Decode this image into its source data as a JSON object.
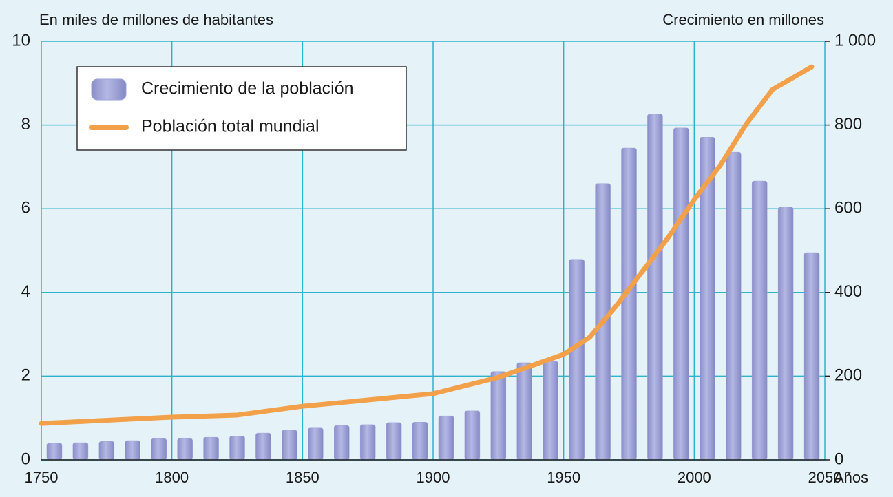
{
  "chart_data": {
    "type": "bar-line",
    "y_axis_label": "En miles de millones de habitantes",
    "y2_axis_label": "Crecimiento en millones",
    "x_axis_label": "Años",
    "series": [
      {
        "name": "Crecimiento de la población",
        "type": "bar",
        "axis": "y2",
        "color": "#9ea2d6",
        "x": [
          1755,
          1765,
          1775,
          1785,
          1795,
          1805,
          1815,
          1825,
          1835,
          1845,
          1855,
          1865,
          1875,
          1885,
          1895,
          1905,
          1915,
          1925,
          1935,
          1945,
          1955,
          1965,
          1975,
          1985,
          1995,
          2005,
          2015,
          2025,
          2035,
          2045
        ],
        "values": [
          40,
          41,
          44,
          46,
          51,
          51,
          54,
          57,
          64,
          71,
          76,
          82,
          84,
          89,
          90,
          105,
          117,
          211,
          232,
          235,
          479,
          660,
          745,
          826,
          793,
          771,
          735,
          666,
          604,
          495
        ]
      },
      {
        "name": "Población total mundial",
        "type": "line",
        "axis": "y",
        "color": "#f2a04a",
        "x": [
          1750,
          1800,
          1825,
          1850,
          1900,
          1925,
          1950,
          1960,
          1970,
          1980,
          1990,
          2000,
          2010,
          2020,
          2030,
          2045
        ],
        "values": [
          0.87,
          1.02,
          1.07,
          1.28,
          1.58,
          1.97,
          2.52,
          2.93,
          3.67,
          4.49,
          5.31,
          6.22,
          7.04,
          8.03,
          8.85,
          9.39
        ]
      }
    ],
    "xlim": [
      1750,
      2050
    ],
    "xticks": [
      1750,
      1800,
      1850,
      1900,
      1950,
      2000,
      2050
    ],
    "ylim": [
      0,
      10
    ],
    "yticks": [
      0,
      2,
      4,
      6,
      8,
      10
    ],
    "y2lim": [
      0,
      1000
    ],
    "y2ticks": [
      0,
      200,
      400,
      600,
      800,
      {
        "value": 1000,
        "label": "1 000"
      }
    ],
    "grid": true,
    "legend": "upper left"
  }
}
